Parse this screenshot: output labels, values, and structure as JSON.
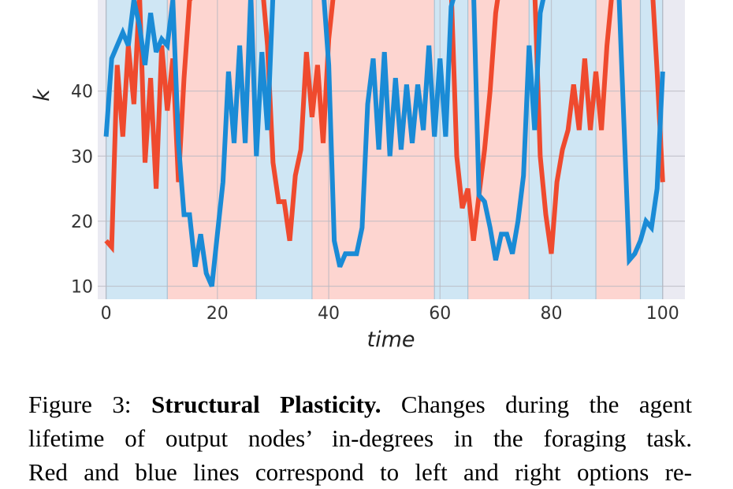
{
  "chart_data": {
    "type": "line",
    "xlabel": "time",
    "ylabel": "k",
    "xlim": [
      -1.5,
      104
    ],
    "ylim": [
      8,
      54
    ],
    "xticks": [
      0,
      20,
      40,
      60,
      80,
      100
    ],
    "yticks": [
      10,
      20,
      30,
      40
    ],
    "grid": true,
    "background_bands": [
      {
        "from": 0,
        "to": 11,
        "color": "blue"
      },
      {
        "from": 11,
        "to": 27,
        "color": "red"
      },
      {
        "from": 27,
        "to": 37,
        "color": "blue"
      },
      {
        "from": 37,
        "to": 59,
        "color": "red"
      },
      {
        "from": 59,
        "to": 65,
        "color": "blue"
      },
      {
        "from": 65,
        "to": 76,
        "color": "red"
      },
      {
        "from": 76,
        "to": 88,
        "color": "blue"
      },
      {
        "from": 88,
        "to": 96,
        "color": "red"
      },
      {
        "from": 96,
        "to": 100,
        "color": "blue"
      }
    ],
    "series": [
      {
        "color": "#ef4a2e",
        "x": [
          0,
          1,
          2,
          3,
          4,
          5,
          6,
          7,
          8,
          9,
          10,
          11,
          12,
          13,
          14,
          15,
          16,
          17,
          18,
          19,
          20,
          21,
          22,
          23,
          24,
          25,
          26,
          27,
          28,
          29,
          30,
          31,
          32,
          33,
          34,
          35,
          36,
          37,
          38,
          39,
          40,
          41,
          42,
          43,
          44,
          45,
          46,
          47,
          48,
          49,
          50,
          51,
          52,
          53,
          54,
          55,
          56,
          57,
          58,
          59,
          60,
          61,
          62,
          63,
          64,
          65,
          66,
          67,
          68,
          69,
          70,
          71,
          72,
          73,
          74,
          75,
          76,
          77,
          78,
          79,
          80,
          81,
          82,
          83,
          84,
          85,
          86,
          87,
          88,
          89,
          90,
          91,
          92,
          93,
          94,
          95,
          96,
          97,
          98,
          99,
          100
        ],
        "values": [
          17,
          16,
          44,
          33,
          47,
          38,
          55,
          29,
          42,
          25,
          47,
          37,
          45,
          26,
          42,
          54,
          55,
          56,
          57,
          58,
          56,
          57,
          58,
          58,
          58,
          56,
          57,
          58,
          57,
          47,
          29,
          23,
          23,
          17,
          27,
          31,
          46,
          36,
          44,
          32,
          48,
          56,
          58,
          57,
          58,
          58,
          58,
          57,
          58,
          58,
          58,
          57,
          58,
          56,
          57,
          58,
          58,
          57,
          58,
          56,
          57,
          58,
          56,
          30,
          22,
          25,
          17,
          24,
          31,
          40,
          52,
          58,
          57,
          58,
          56,
          57,
          58,
          56,
          30,
          21,
          15,
          26,
          31,
          34,
          41,
          34,
          45,
          34,
          43,
          34,
          47,
          56,
          57,
          58,
          57,
          56,
          58,
          55,
          58,
          43,
          26
        ]
      },
      {
        "color": "#1a8bd6",
        "x": [
          0,
          1,
          2,
          3,
          4,
          5,
          6,
          7,
          8,
          9,
          10,
          11,
          12,
          13,
          14,
          15,
          16,
          17,
          18,
          19,
          20,
          21,
          22,
          23,
          24,
          25,
          26,
          27,
          28,
          29,
          30,
          31,
          32,
          33,
          34,
          35,
          36,
          37,
          38,
          39,
          40,
          41,
          42,
          43,
          44,
          45,
          46,
          47,
          48,
          49,
          50,
          51,
          52,
          53,
          54,
          55,
          56,
          57,
          58,
          59,
          60,
          61,
          62,
          63,
          64,
          65,
          66,
          67,
          68,
          69,
          70,
          71,
          72,
          73,
          74,
          75,
          76,
          77,
          78,
          79,
          80,
          81,
          82,
          83,
          84,
          85,
          86,
          87,
          88,
          89,
          90,
          91,
          92,
          93,
          94,
          95,
          96,
          97,
          98,
          99,
          100
        ],
        "values": [
          33,
          45,
          47,
          49,
          47,
          54,
          50,
          44,
          52,
          46,
          48,
          47,
          54,
          32,
          21,
          21,
          13,
          18,
          12,
          10,
          18,
          26,
          43,
          32,
          47,
          32,
          55,
          30,
          46,
          34,
          55,
          56,
          57,
          58,
          57,
          56,
          58,
          57,
          58,
          56,
          44,
          17,
          13,
          15,
          15,
          15,
          19,
          38,
          45,
          31,
          46,
          30,
          42,
          31,
          41,
          32,
          41,
          34,
          47,
          33,
          45,
          33,
          53,
          56,
          57,
          58,
          56,
          24,
          23,
          19,
          14,
          18,
          18,
          15,
          20,
          27,
          47,
          34,
          52,
          56,
          57,
          58,
          56,
          57,
          58,
          57,
          56,
          57,
          58,
          57,
          56,
          57,
          58,
          36,
          14,
          15,
          17,
          20,
          19,
          25,
          43
        ]
      }
    ]
  },
  "caption": {
    "lines": [
      {
        "prefix": "Figure 3: ",
        "bold": "Structural Plasticity.",
        "rest": " Changes during the agent"
      },
      {
        "prefix": "",
        "bold": "",
        "rest": "lifetime of output nodes’ in-degrees in the foraging task."
      },
      {
        "prefix": "",
        "bold": "",
        "rest": "Red and blue lines correspond to left and right options re-"
      }
    ]
  }
}
